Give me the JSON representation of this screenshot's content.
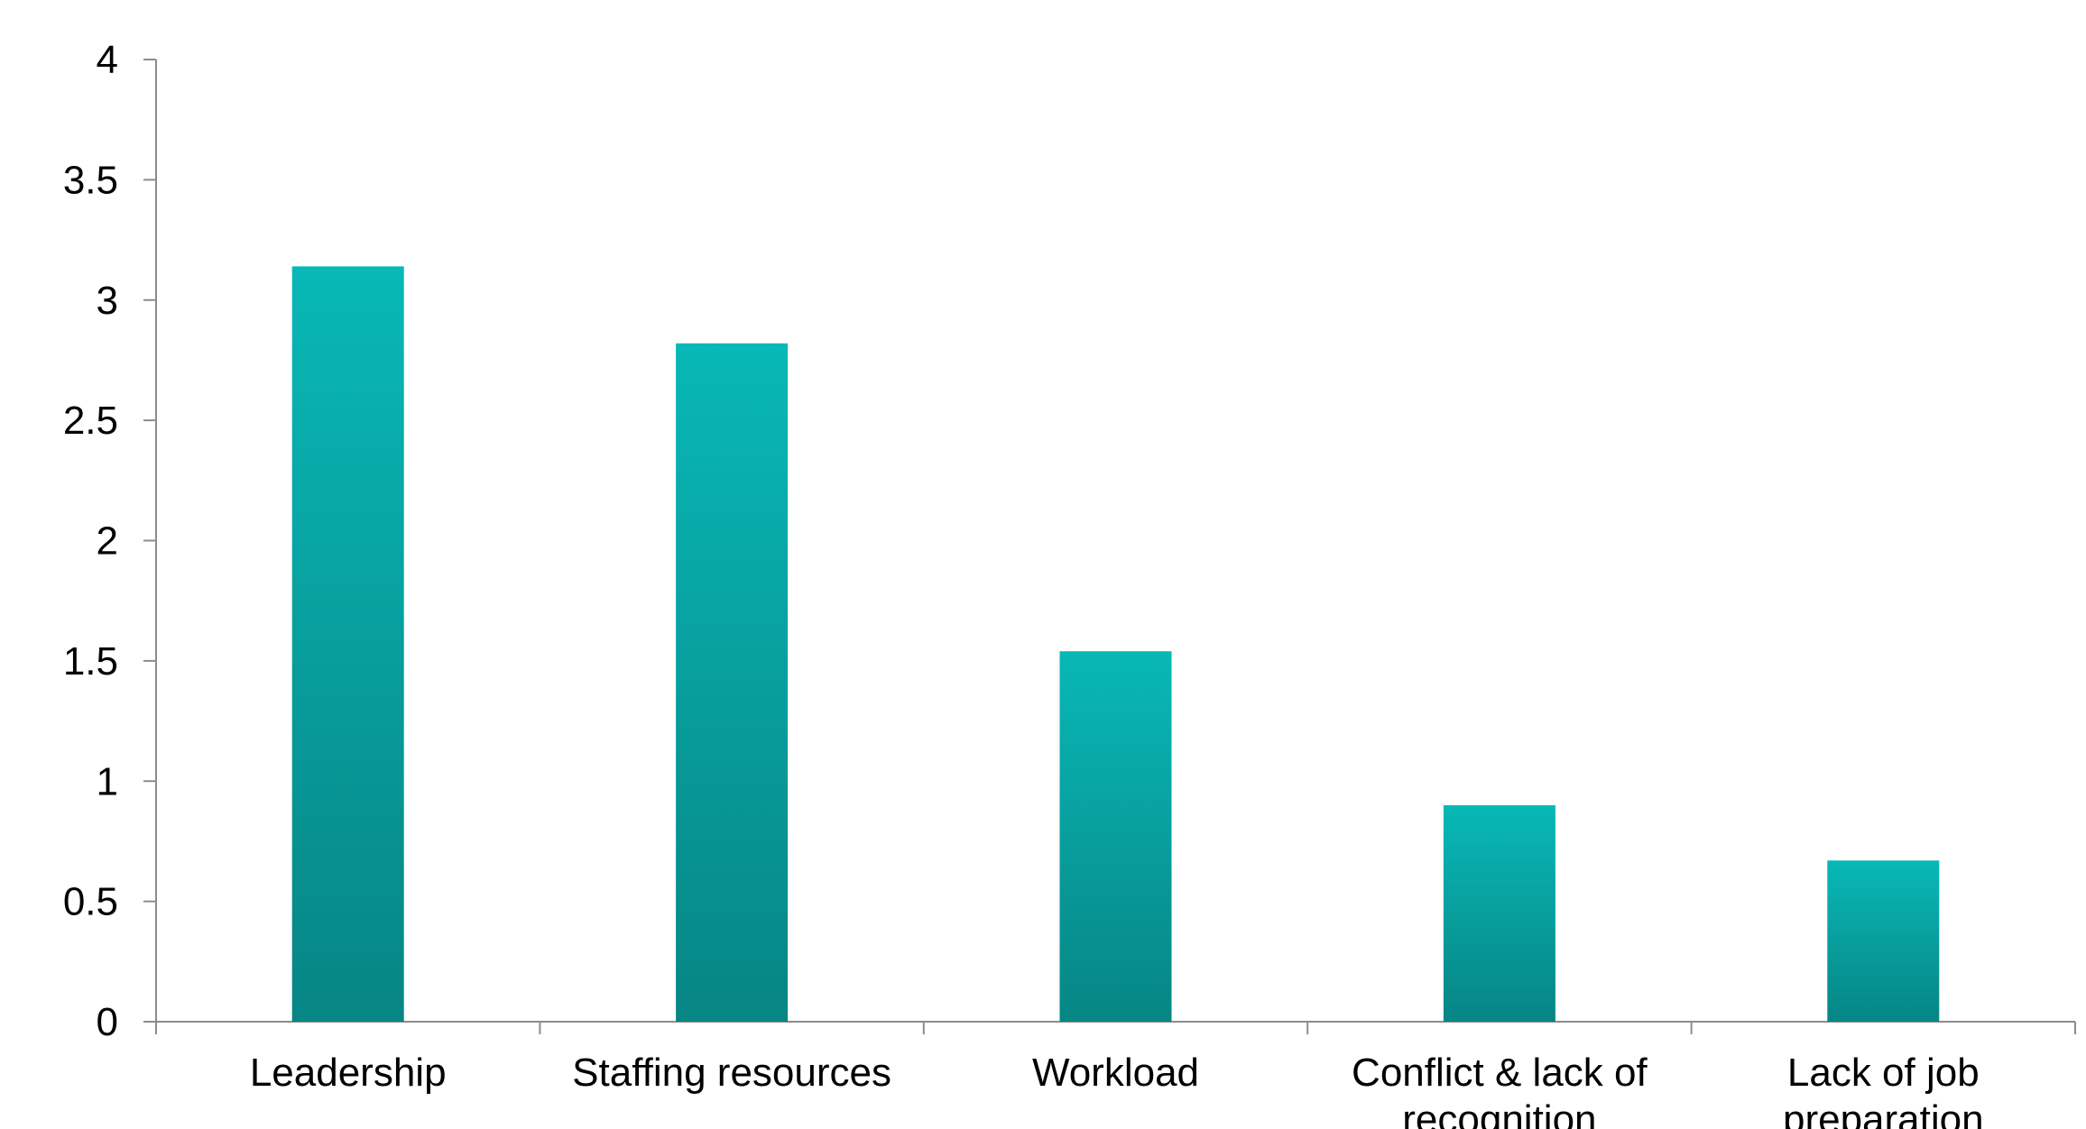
{
  "chart_data": {
    "type": "bar",
    "categories": [
      "Leadership",
      "Staffing resources",
      "Workload",
      "Conflict & lack of recognition",
      "Lack of job preparation"
    ],
    "values": [
      3.14,
      2.82,
      1.54,
      0.9,
      0.67
    ],
    "title": "",
    "xlabel": "",
    "ylabel": "",
    "ylim": [
      0,
      4
    ],
    "yticks": [
      "0",
      "0.5",
      "1",
      "1.5",
      "2",
      "2.5",
      "3",
      "3.5",
      "4"
    ],
    "grid": false,
    "legend": "none",
    "colors": {
      "bar_top": "#08b8b6",
      "bar_bottom": "#078585",
      "axis": "#8c8c8c",
      "text": "#000000"
    }
  }
}
